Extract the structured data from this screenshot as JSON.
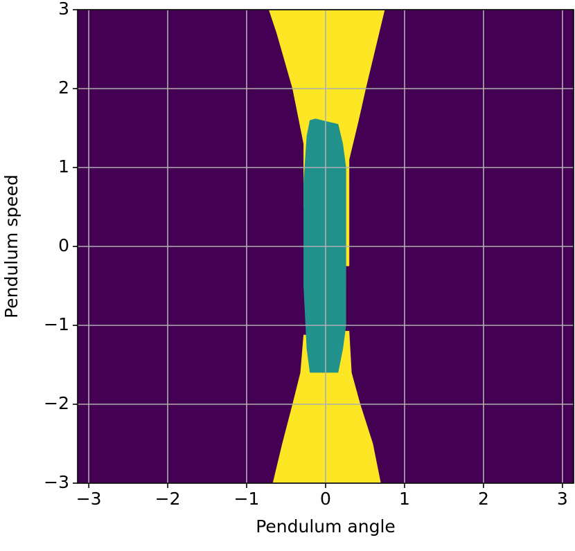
{
  "chart_data": {
    "type": "region",
    "x_label": "Pendulum angle",
    "y_label": "Pendulum speed",
    "background": "#440154",
    "xlim": [
      -3.1416,
      3.1416
    ],
    "ylim": [
      -3,
      3
    ],
    "xticks": [
      {
        "value": -3,
        "label": "−3"
      },
      {
        "value": -2,
        "label": "−2"
      },
      {
        "value": -1,
        "label": "−1"
      },
      0,
      1,
      2,
      3
    ],
    "yticks": [
      {
        "value": -3,
        "label": "−3"
      },
      {
        "value": -2,
        "label": "−2"
      },
      {
        "value": -1,
        "label": "−1"
      },
      0,
      1,
      2,
      3
    ],
    "grid": true,
    "regions": [
      {
        "color": "#fde725",
        "x": [
          -0.72,
          0.75,
          0.51,
          0.42,
          0.3,
          0.3,
          -0.2,
          -0.2,
          -0.28,
          -0.28,
          -0.42,
          -0.62
        ],
        "y": [
          3,
          3,
          2,
          1.6,
          1.1,
          -0.25,
          -0.25,
          0.5,
          0.5,
          1.3,
          2,
          2.7
        ]
      },
      {
        "color": "#fde725",
        "x": [
          -0.67,
          0.7,
          0.6,
          0.44,
          0.33,
          0.3,
          -0.2,
          -0.2,
          -0.28,
          -0.32,
          -0.42,
          -0.55
        ],
        "y": [
          -3,
          -3,
          -2.5,
          -2,
          -1.6,
          -1.07,
          -1.07,
          -1.12,
          -1.12,
          -1.6,
          -2,
          -2.5
        ]
      },
      {
        "color": "#21918c",
        "x": [
          -0.2,
          -0.13,
          0.16,
          0.22,
          0.26,
          0.26,
          0.22,
          0.16,
          -0.2,
          -0.24,
          -0.28,
          -0.28,
          -0.24
        ],
        "y": [
          1.6,
          1.62,
          1.55,
          1.3,
          1.0,
          -1.0,
          -1.3,
          -1.6,
          -1.6,
          -1.3,
          -0.5,
          0.8,
          1.4
        ]
      }
    ]
  }
}
